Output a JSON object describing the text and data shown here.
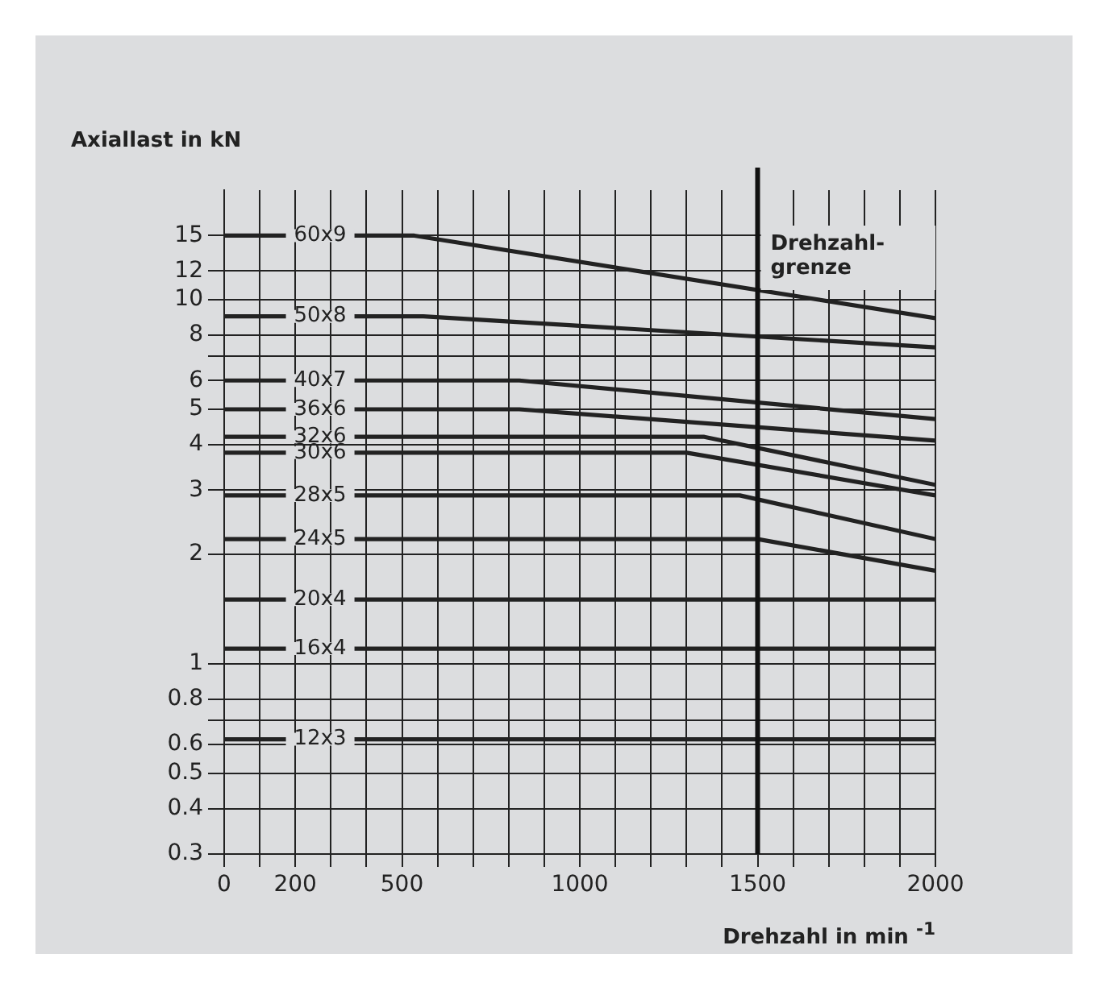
{
  "chart_data": {
    "type": "line",
    "ylabel": "Axiallast in kN",
    "xlabel": "Drehzahl in min $^{-1}$",
    "log": "y",
    "grid": true,
    "legend": false,
    "marker": "none",
    "line_style": "solid",
    "xlim": [
      0,
      2000
    ],
    "xticks": [
      0,
      {
        "value": 100,
        "label": null
      },
      200,
      {
        "value": 300,
        "label": null
      },
      {
        "value": 400,
        "label": null
      },
      500,
      {
        "value": 600,
        "label": null
      },
      {
        "value": 700,
        "label": null
      },
      {
        "value": 800,
        "label": null
      },
      {
        "value": 900,
        "label": null
      },
      1000,
      {
        "value": 1100,
        "label": null
      },
      {
        "value": 1200,
        "label": null
      },
      {
        "value": 1300,
        "label": null
      },
      {
        "value": 1400,
        "label": null
      },
      1500,
      {
        "value": 1600,
        "label": null
      },
      {
        "value": 1700,
        "label": null
      },
      {
        "value": 1800,
        "label": null
      },
      {
        "value": 1900,
        "label": null
      },
      2000
    ],
    "ylim": [
      0.3,
      20
    ],
    "yticks": [
      0.3,
      0.4,
      0.5,
      0.6,
      {
        "value": 0.7,
        "label": null
      },
      0.8,
      1,
      2,
      3,
      4,
      5,
      6,
      {
        "value": 7,
        "label": null
      },
      8,
      10,
      12,
      15
    ],
    "ref_lines": [
      {
        "axis": "x",
        "value": 1500,
        "label": "Drehzahl-\ngrenze"
      }
    ],
    "series": [
      {
        "name": "60x9",
        "color": "#222222",
        "x": [
          0,
          535,
          2000
        ],
        "values": [
          15,
          15,
          8.9
        ]
      },
      {
        "name": "50x8",
        "color": "#222222",
        "x": [
          0,
          560,
          2000
        ],
        "values": [
          9,
          9,
          7.4
        ]
      },
      {
        "name": "40x7",
        "color": "#222222",
        "x": [
          0,
          830,
          2000
        ],
        "values": [
          6,
          6,
          4.7
        ]
      },
      {
        "name": "36x6",
        "color": "#222222",
        "x": [
          0,
          830,
          2000
        ],
        "values": [
          5,
          5,
          4.1
        ]
      },
      {
        "name": "32x6",
        "color": "#222222",
        "x": [
          0,
          1350,
          2000
        ],
        "values": [
          4.2,
          4.2,
          3.1
        ]
      },
      {
        "name": "30x6",
        "color": "#222222",
        "x": [
          0,
          1300,
          2000
        ],
        "values": [
          3.8,
          3.8,
          2.9
        ]
      },
      {
        "name": "28x5",
        "color": "#222222",
        "x": [
          0,
          1450,
          2000
        ],
        "values": [
          2.9,
          2.9,
          2.2
        ]
      },
      {
        "name": "24x5",
        "color": "#222222",
        "x": [
          0,
          1500,
          2000
        ],
        "values": [
          2.2,
          2.2,
          1.8
        ]
      },
      {
        "name": "20x4",
        "color": "#222222",
        "x": [
          0,
          2000
        ],
        "values": [
          1.5,
          1.5
        ]
      },
      {
        "name": "16x4",
        "color": "#222222",
        "x": [
          0,
          2000
        ],
        "values": [
          1.1,
          1.1
        ]
      },
      {
        "name": "12x3",
        "color": "#222222",
        "x": [
          0,
          2000
        ],
        "values": [
          0.62,
          0.62
        ]
      }
    ]
  }
}
